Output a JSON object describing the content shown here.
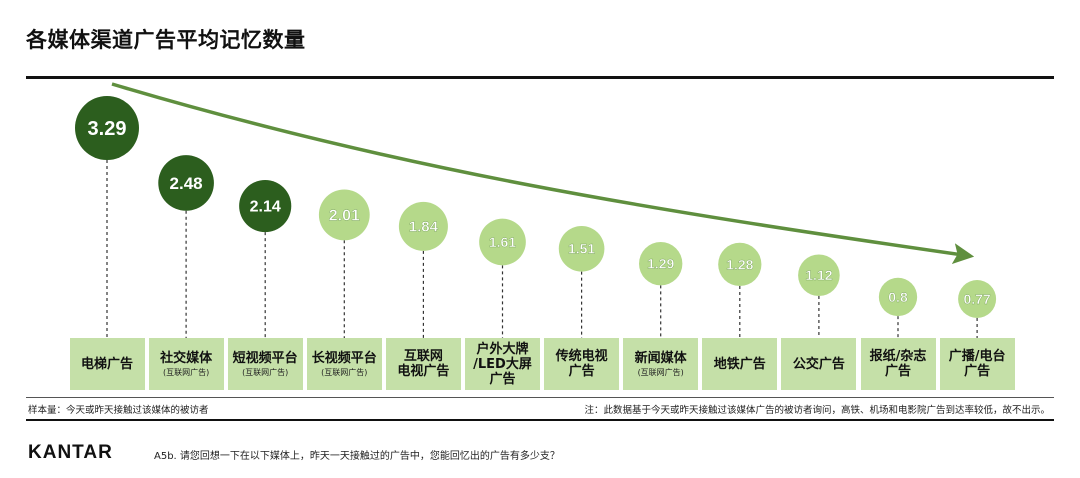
{
  "title": "各媒体渠道广告平均记忆数量",
  "chart_data": {
    "type": "bubble-timeline",
    "title": "各媒体渠道广告平均记忆数量",
    "categories": [
      {
        "label": "电梯广告",
        "sub": ""
      },
      {
        "label": "社交媒体",
        "sub": "(互联网广告)"
      },
      {
        "label": "短视频平台",
        "sub": "(互联网广告)"
      },
      {
        "label": "长视频平台",
        "sub": "(互联网广告)"
      },
      {
        "label": "互联网\n电视广告",
        "sub": ""
      },
      {
        "label": "户外大牌\n/LED大屏\n广告",
        "sub": ""
      },
      {
        "label": "传统电视\n广告",
        "sub": ""
      },
      {
        "label": "新闻媒体",
        "sub": "(互联网广告)"
      },
      {
        "label": "地铁广告",
        "sub": ""
      },
      {
        "label": "公交广告",
        "sub": ""
      },
      {
        "label": "报纸/杂志\n广告",
        "sub": ""
      },
      {
        "label": "广播/电台\n广告",
        "sub": ""
      }
    ],
    "values": [
      3.29,
      2.48,
      2.14,
      2.01,
      1.84,
      1.61,
      1.51,
      1.29,
      1.28,
      1.12,
      0.8,
      0.77
    ],
    "value_labels": [
      "3.29",
      "2.48",
      "2.14",
      "2.01",
      "1.84",
      "1.61",
      "1.51",
      "1.29",
      "1.28",
      "1.12",
      "0.8",
      "0.77"
    ],
    "highlight_count": 3,
    "colors": {
      "dark": "#2c5e1e",
      "light": "#b5d98a",
      "arrow": "#5f8f3e",
      "category_box": "#c5e0a8"
    }
  },
  "notes": {
    "sample": "样本量：今天或昨天接触过该媒体的被访者",
    "footnote": "注：此数据基于今天或昨天接触过该媒体广告的被访者询问，高铁、机场和电影院广告到达率较低，故不出示。"
  },
  "footer": {
    "logo": "KANTAR",
    "question": "A5b. 请您回想一下在以下媒体上，昨天一天接触过的广告中，您能回忆出的广告有多少支？"
  }
}
